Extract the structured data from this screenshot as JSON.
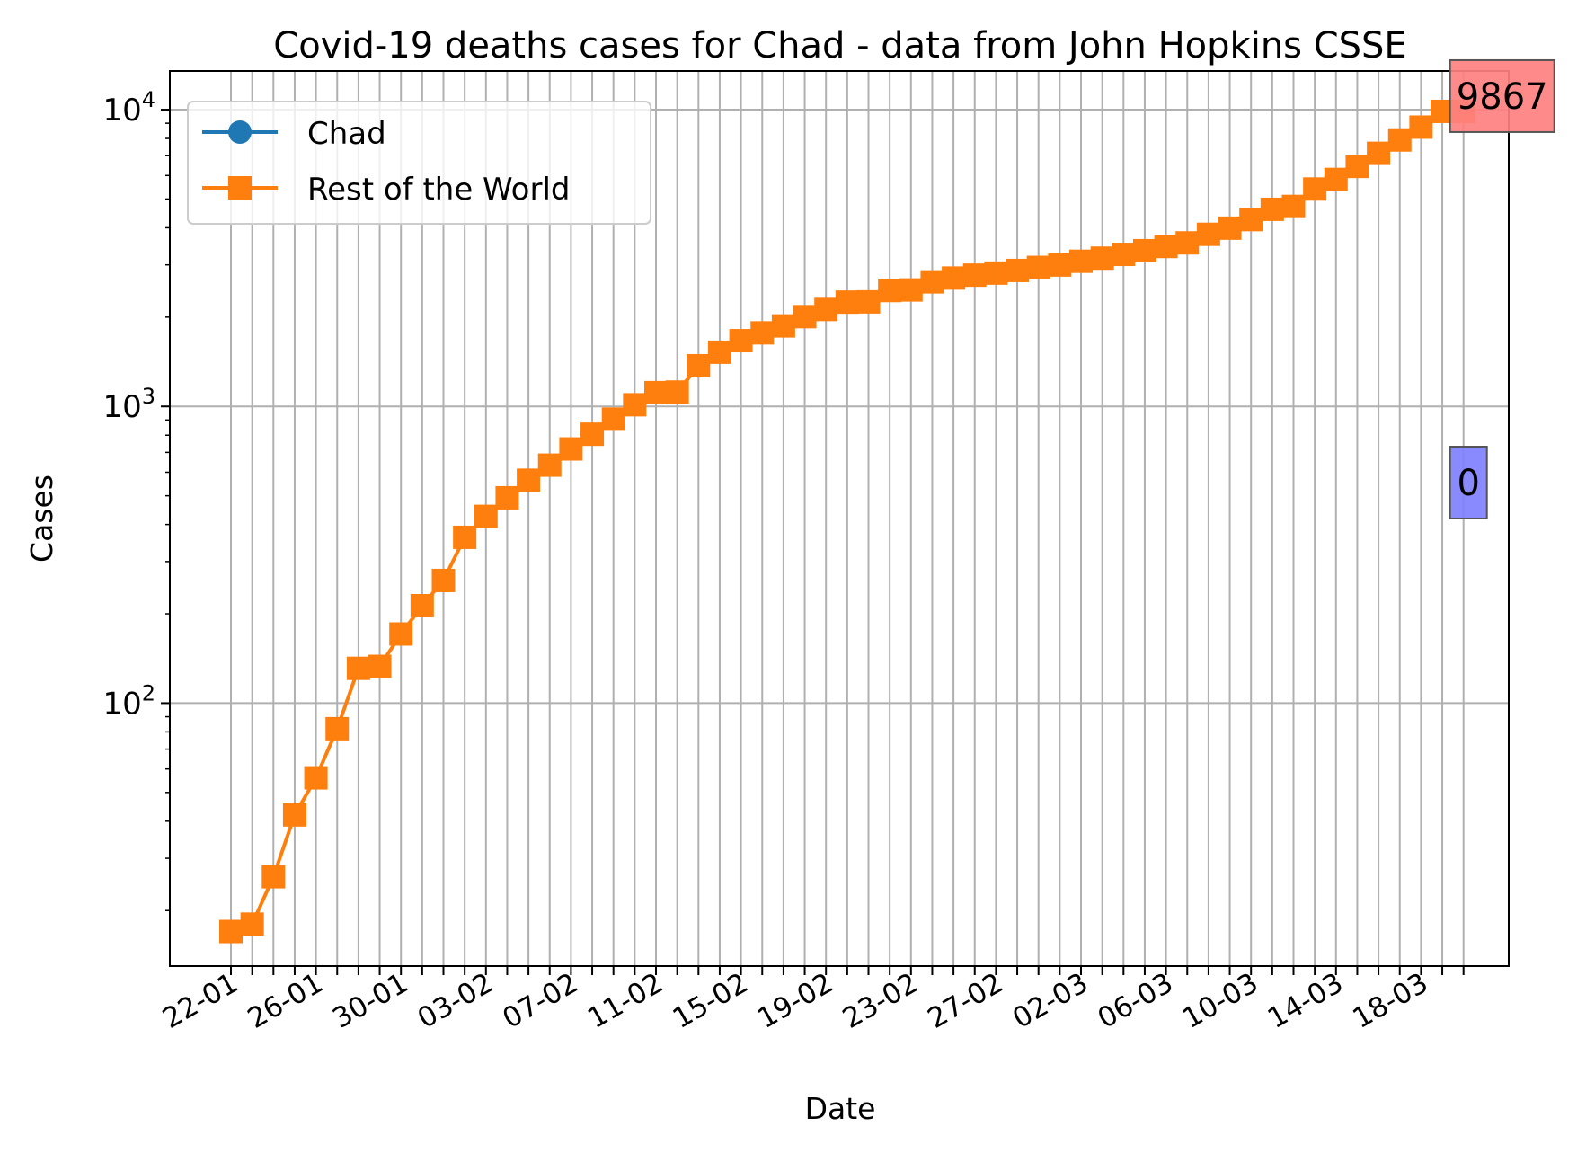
{
  "chart_data": {
    "type": "line",
    "title": "Covid-19 deaths cases for Chad - data from John Hopkins CSSE",
    "xlabel": "Date",
    "ylabel": "Cases",
    "yscale": "log",
    "ylim": [
      13,
      13500
    ],
    "grid": true,
    "legend_position": "top-left",
    "x": [
      "22-01",
      "23-01",
      "24-01",
      "25-01",
      "26-01",
      "27-01",
      "28-01",
      "29-01",
      "30-01",
      "31-01",
      "01-02",
      "02-02",
      "03-02",
      "04-02",
      "05-02",
      "06-02",
      "07-02",
      "08-02",
      "09-02",
      "10-02",
      "11-02",
      "12-02",
      "13-02",
      "14-02",
      "15-02",
      "16-02",
      "17-02",
      "18-02",
      "19-02",
      "20-02",
      "21-02",
      "22-02",
      "23-02",
      "24-02",
      "25-02",
      "26-02",
      "27-02",
      "28-02",
      "29-02",
      "01-03",
      "02-03",
      "03-03",
      "04-03",
      "05-03",
      "06-03",
      "07-03",
      "08-03",
      "09-03",
      "10-03",
      "11-03",
      "12-03",
      "13-03",
      "14-03",
      "15-03",
      "16-03",
      "17-03",
      "18-03",
      "19-03",
      "20-03"
    ],
    "x_tick_labels": [
      "22-01",
      "26-01",
      "30-01",
      "03-02",
      "07-02",
      "11-02",
      "15-02",
      "19-02",
      "23-02",
      "27-02",
      "02-03",
      "06-03",
      "10-03",
      "14-03",
      "18-03"
    ],
    "y_tick_labels": [
      {
        "base": "10",
        "exp": "2",
        "value": 100
      },
      {
        "base": "10",
        "exp": "3",
        "value": 1000
      },
      {
        "base": "10",
        "exp": "4",
        "value": 10000
      }
    ],
    "series": [
      {
        "name": "Chad",
        "color": "#1f77b4",
        "marker": "circle",
        "values": [
          0,
          0,
          0,
          0,
          0,
          0,
          0,
          0,
          0,
          0,
          0,
          0,
          0,
          0,
          0,
          0,
          0,
          0,
          0,
          0,
          0,
          0,
          0,
          0,
          0,
          0,
          0,
          0,
          0,
          0,
          0,
          0,
          0,
          0,
          0,
          0,
          0,
          0,
          0,
          0,
          0,
          0,
          0,
          0,
          0,
          0,
          0,
          0,
          0,
          0,
          0,
          0,
          0,
          0,
          0,
          0,
          0,
          0,
          0
        ]
      },
      {
        "name": "Rest of the World",
        "color": "#ff7f0e",
        "marker": "square",
        "values": [
          17,
          18,
          26,
          42,
          56,
          82,
          131,
          133,
          171,
          213,
          259,
          362,
          426,
          492,
          564,
          634,
          719,
          806,
          906,
          1013,
          1113,
          1118,
          1371,
          1523,
          1666,
          1770,
          1868,
          2007,
          2122,
          2247,
          2251,
          2458,
          2469,
          2629,
          2708,
          2770,
          2814,
          2872,
          2941,
          2996,
          3085,
          3160,
          3254,
          3348,
          3460,
          3558,
          3802,
          3988,
          4262,
          4615,
          4720,
          5404,
          5819,
          6440,
          7126,
          7905,
          8733,
          9867,
          9867
        ]
      }
    ],
    "annotations": [
      {
        "text": "9867",
        "series": "Rest of the World",
        "bg": "#ff8080"
      },
      {
        "text": "0",
        "series": "Chad",
        "bg": "#8080ff"
      }
    ]
  }
}
